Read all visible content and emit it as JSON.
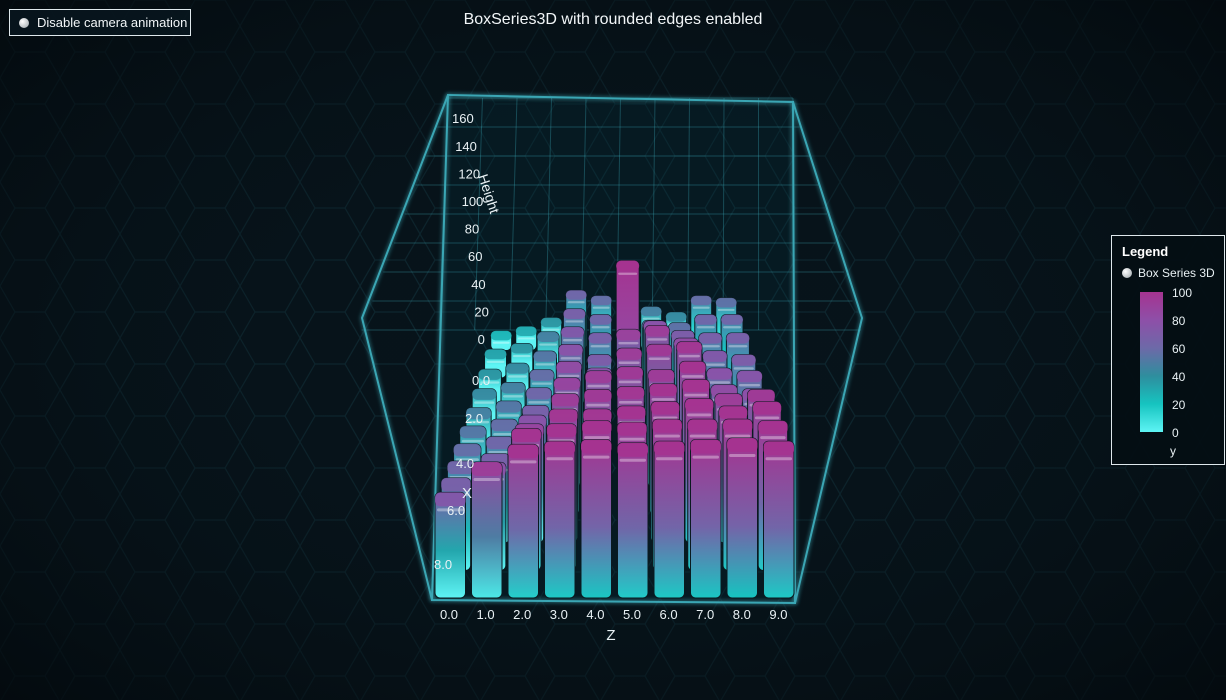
{
  "toolbar": {
    "camera_toggle_label": "Disable camera animation"
  },
  "chart_data": {
    "type": "bar3d",
    "title": "BoxSeries3D with rounded edges enabled",
    "axes": {
      "y": {
        "label": "Height",
        "min": 0,
        "max": 160,
        "ticks": [
          "0",
          "20",
          "40",
          "60",
          "80",
          "100",
          "120",
          "140",
          "160"
        ]
      },
      "x": {
        "label": "X",
        "ticks": [
          "0.0",
          "2.0",
          "4.0",
          "6.0",
          "8.0"
        ]
      },
      "z": {
        "label": "Z",
        "ticks": [
          "0.0",
          "1.0",
          "2.0",
          "3.0",
          "4.0",
          "5.0",
          "6.0",
          "7.0",
          "8.0",
          "9.0"
        ]
      }
    },
    "grid": true,
    "rounded_edges": true,
    "series": [
      {
        "name": "Box Series 3D",
        "note_rows": "rows indexed by x = 0..9, columns by z = 0..9, values = height",
        "values": [
          [
            18,
            22,
            30,
            55,
            50,
            38,
            40,
            35,
            50,
            48
          ],
          [
            25,
            30,
            40,
            60,
            55,
            45,
            50,
            48,
            55,
            55
          ],
          [
            30,
            35,
            45,
            65,
            60,
            120,
            70,
            62,
            60,
            60
          ],
          [
            35,
            40,
            50,
            70,
            62,
            82,
            85,
            75,
            65,
            62
          ],
          [
            40,
            45,
            55,
            75,
            70,
            85,
            88,
            90,
            70,
            68
          ],
          [
            45,
            50,
            60,
            80,
            85,
            88,
            86,
            92,
            75,
            72
          ],
          [
            50,
            55,
            70,
            85,
            88,
            90,
            92,
            95,
            85,
            88
          ],
          [
            55,
            60,
            80,
            90,
            90,
            92,
            95,
            97,
            92,
            95
          ],
          [
            60,
            70,
            92,
            95,
            97,
            96,
            98,
            98,
            98,
            97
          ],
          [
            66,
            85,
            96,
            98,
            99,
            97,
            98,
            99,
            100,
            98
          ]
        ]
      }
    ],
    "legend": {
      "title": "Legend",
      "position": "right",
      "entry": "Box Series 3D",
      "color_scale": {
        "ticks": [
          "100",
          "80",
          "60",
          "40",
          "20",
          "0"
        ],
        "unit": "y",
        "min_color": "#5ef4f4",
        "max_color": "#a53390"
      }
    }
  },
  "colors": {
    "background": "#071219",
    "grid_line": "#3aa6b4",
    "low": "#5ef4f4",
    "mid": "#2e8e9e",
    "high": "#a53390"
  }
}
